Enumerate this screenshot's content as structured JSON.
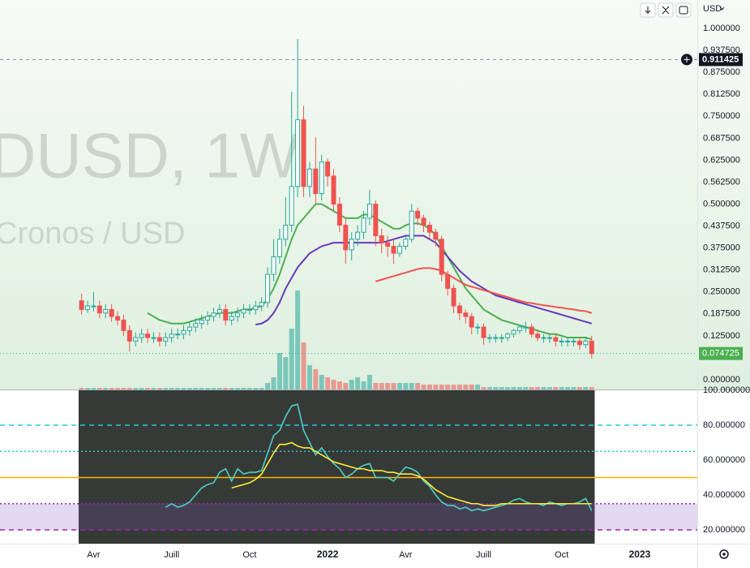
{
  "toolbar": {
    "currency": "USD"
  },
  "chart_data": [
    {
      "type": "candlestick",
      "title": "DUSD, 1W",
      "subtitle": "Cronos / USD",
      "xlim": [
        -13.6,
        102.6
      ],
      "xticks": [
        {
          "value": 2,
          "label": "Avr"
        },
        {
          "value": 15,
          "label": "Juill"
        },
        {
          "value": 28,
          "label": "Oct"
        },
        {
          "value": 41,
          "label": "2022"
        },
        {
          "value": 54,
          "label": "Avr"
        },
        {
          "value": 67,
          "label": "Juill"
        },
        {
          "value": 80,
          "label": "Oct"
        },
        {
          "value": 93,
          "label": "2023"
        }
      ],
      "ylim": [
        -0.0277,
        1.081
      ],
      "yticks": [
        {
          "value": 0,
          "label": "0.000000"
        },
        {
          "value": 0.125,
          "label": "0.125000"
        },
        {
          "value": 0.1875,
          "label": "0.187500"
        },
        {
          "value": 0.25,
          "label": "0.250000"
        },
        {
          "value": 0.3125,
          "label": "0.312500"
        },
        {
          "value": 0.375,
          "label": "0.375000"
        },
        {
          "value": 0.4375,
          "label": "0.437500"
        },
        {
          "value": 0.5,
          "label": "0.500000"
        },
        {
          "value": 0.5625,
          "label": "0.562500"
        },
        {
          "value": 0.625,
          "label": "0.625000"
        },
        {
          "value": 0.6875,
          "label": "0.687500"
        },
        {
          "value": 0.75,
          "label": "0.750000"
        },
        {
          "value": 0.8125,
          "label": "0.812500"
        },
        {
          "value": 0.875,
          "label": "0.875000"
        },
        {
          "value": 0.9375,
          "label": "0.937500"
        },
        {
          "value": 1,
          "label": "1.000000"
        }
      ],
      "up_color": "#26a69a",
      "down_color": "#ef5350",
      "up_fill": "#ffffff",
      "open": [
        0.225,
        0.2,
        0.21,
        0.21,
        0.19,
        0.2,
        0.18,
        0.17,
        0.14,
        0.11,
        0.12,
        0.13,
        0.12,
        0.12,
        0.11,
        0.12,
        0.13,
        0.13,
        0.14,
        0.15,
        0.16,
        0.17,
        0.18,
        0.19,
        0.2,
        0.17,
        0.18,
        0.19,
        0.2,
        0.2,
        0.21,
        0.22,
        0.3,
        0.35,
        0.4,
        0.44,
        0.55,
        0.74,
        0.55,
        0.6,
        0.53,
        0.62,
        0.58,
        0.5,
        0.44,
        0.37,
        0.4,
        0.42,
        0.46,
        0.5,
        0.41,
        0.39,
        0.38,
        0.36,
        0.38,
        0.4,
        0.48,
        0.46,
        0.44,
        0.42,
        0.4,
        0.3,
        0.26,
        0.21,
        0.19,
        0.18,
        0.15,
        0.15,
        0.12,
        0.12,
        0.12,
        0.12,
        0.13,
        0.14,
        0.15,
        0.15,
        0.13,
        0.12,
        0.12,
        0.12,
        0.11,
        0.11,
        0.11,
        0.11,
        0.1,
        0.11
      ],
      "high": [
        0.245,
        0.225,
        0.25,
        0.225,
        0.215,
        0.215,
        0.195,
        0.185,
        0.155,
        0.135,
        0.145,
        0.145,
        0.135,
        0.135,
        0.135,
        0.145,
        0.145,
        0.155,
        0.165,
        0.175,
        0.185,
        0.195,
        0.205,
        0.215,
        0.215,
        0.195,
        0.205,
        0.215,
        0.215,
        0.225,
        0.235,
        0.32,
        0.4,
        0.43,
        0.52,
        0.82,
        0.97,
        0.78,
        0.62,
        0.69,
        0.64,
        0.63,
        0.6,
        0.52,
        0.46,
        0.42,
        0.44,
        0.48,
        0.54,
        0.51,
        0.43,
        0.41,
        0.4,
        0.39,
        0.41,
        0.5,
        0.49,
        0.47,
        0.45,
        0.43,
        0.41,
        0.31,
        0.27,
        0.22,
        0.2,
        0.19,
        0.16,
        0.16,
        0.13,
        0.13,
        0.13,
        0.135,
        0.145,
        0.155,
        0.165,
        0.16,
        0.14,
        0.13,
        0.13,
        0.13,
        0.12,
        0.12,
        0.12,
        0.12,
        0.12,
        0.125
      ],
      "low": [
        0.185,
        0.19,
        0.195,
        0.175,
        0.175,
        0.165,
        0.155,
        0.125,
        0.08,
        0.095,
        0.105,
        0.105,
        0.105,
        0.095,
        0.095,
        0.105,
        0.115,
        0.115,
        0.125,
        0.135,
        0.145,
        0.155,
        0.165,
        0.175,
        0.155,
        0.155,
        0.165,
        0.175,
        0.185,
        0.185,
        0.195,
        0.205,
        0.28,
        0.33,
        0.38,
        0.42,
        0.52,
        0.52,
        0.52,
        0.5,
        0.51,
        0.55,
        0.48,
        0.42,
        0.33,
        0.34,
        0.38,
        0.4,
        0.44,
        0.38,
        0.36,
        0.35,
        0.33,
        0.35,
        0.37,
        0.39,
        0.44,
        0.42,
        0.4,
        0.38,
        0.28,
        0.24,
        0.19,
        0.17,
        0.16,
        0.13,
        0.13,
        0.1,
        0.105,
        0.105,
        0.105,
        0.11,
        0.12,
        0.13,
        0.135,
        0.12,
        0.11,
        0.105,
        0.105,
        0.095,
        0.095,
        0.095,
        0.095,
        0.085,
        0.09,
        0.06
      ],
      "close": [
        0.2,
        0.21,
        0.21,
        0.19,
        0.2,
        0.18,
        0.17,
        0.14,
        0.11,
        0.12,
        0.13,
        0.12,
        0.12,
        0.11,
        0.12,
        0.13,
        0.13,
        0.14,
        0.15,
        0.16,
        0.17,
        0.18,
        0.19,
        0.2,
        0.17,
        0.18,
        0.19,
        0.2,
        0.2,
        0.21,
        0.22,
        0.3,
        0.35,
        0.4,
        0.44,
        0.55,
        0.74,
        0.55,
        0.6,
        0.53,
        0.62,
        0.58,
        0.5,
        0.44,
        0.37,
        0.4,
        0.42,
        0.46,
        0.5,
        0.41,
        0.39,
        0.38,
        0.36,
        0.38,
        0.4,
        0.48,
        0.46,
        0.44,
        0.42,
        0.4,
        0.3,
        0.26,
        0.21,
        0.19,
        0.18,
        0.15,
        0.15,
        0.12,
        0.12,
        0.12,
        0.12,
        0.13,
        0.14,
        0.15,
        0.15,
        0.13,
        0.12,
        0.12,
        0.12,
        0.11,
        0.11,
        0.11,
        0.11,
        0.1,
        0.11,
        0.0747
      ],
      "volume": [
        2,
        2,
        2,
        2,
        2,
        2,
        2,
        2,
        2,
        2,
        2,
        2,
        2,
        2,
        2,
        2,
        2,
        2,
        2,
        2,
        2,
        2,
        2,
        2,
        2,
        2,
        2,
        2,
        2,
        2,
        2,
        8,
        15,
        45,
        40,
        75,
        122,
        58,
        30,
        25,
        18,
        15,
        12,
        10,
        8,
        12,
        15,
        10,
        18,
        8,
        8,
        8,
        8,
        8,
        8,
        8,
        8,
        6,
        6,
        6,
        6,
        6,
        6,
        6,
        6,
        6,
        6,
        3,
        3,
        3,
        3,
        3,
        3,
        3,
        3,
        3,
        3,
        3,
        3,
        3,
        3,
        3,
        3,
        3,
        3,
        3
      ],
      "volume_lim": [
        0,
        130
      ],
      "series": [
        {
          "color": "#4caf50",
          "values": [
            null,
            null,
            null,
            null,
            null,
            null,
            null,
            null,
            null,
            null,
            null,
            0.19,
            0.18,
            0.17,
            0.165,
            0.16,
            0.16,
            0.16,
            0.165,
            0.17,
            0.175,
            0.18,
            0.185,
            0.19,
            0.19,
            0.19,
            0.195,
            0.2,
            0.2,
            0.205,
            0.21,
            0.23,
            0.26,
            0.3,
            0.35,
            0.4,
            0.44,
            0.46,
            0.48,
            0.5,
            0.5,
            0.49,
            0.48,
            0.47,
            0.46,
            0.46,
            0.46,
            0.47,
            0.47,
            0.46,
            0.45,
            0.44,
            0.43,
            0.43,
            0.44,
            0.445,
            0.445,
            0.44,
            0.43,
            0.41,
            0.38,
            0.35,
            0.32,
            0.29,
            0.26,
            0.24,
            0.22,
            0.2,
            0.19,
            0.18,
            0.17,
            0.165,
            0.16,
            0.155,
            0.15,
            0.145,
            0.14,
            0.135,
            0.13,
            0.13,
            0.125,
            0.12,
            0.12,
            0.12,
            0.12,
            0.115
          ]
        },
        {
          "color": "#673ab7",
          "values": [
            null,
            null,
            null,
            null,
            null,
            null,
            null,
            null,
            null,
            null,
            null,
            null,
            null,
            null,
            null,
            null,
            null,
            null,
            null,
            null,
            null,
            null,
            null,
            null,
            null,
            null,
            null,
            null,
            null,
            0.157,
            0.16,
            0.17,
            0.19,
            0.22,
            0.26,
            0.29,
            0.32,
            0.34,
            0.36,
            0.37,
            0.38,
            0.385,
            0.39,
            0.39,
            0.39,
            0.39,
            0.39,
            0.39,
            0.39,
            0.39,
            0.39,
            0.395,
            0.4,
            0.405,
            0.41,
            0.41,
            0.41,
            0.41,
            0.4,
            0.39,
            0.37,
            0.35,
            0.33,
            0.31,
            0.295,
            0.28,
            0.27,
            0.26,
            0.25,
            0.24,
            0.235,
            0.23,
            0.225,
            0.22,
            0.215,
            0.21,
            0.205,
            0.2,
            0.195,
            0.19,
            0.185,
            0.18,
            0.175,
            0.17,
            0.165,
            0.16
          ]
        },
        {
          "color": "#ef5350",
          "values": [
            null,
            null,
            null,
            null,
            null,
            null,
            null,
            null,
            null,
            null,
            null,
            null,
            null,
            null,
            null,
            null,
            null,
            null,
            null,
            null,
            null,
            null,
            null,
            null,
            null,
            null,
            null,
            null,
            null,
            null,
            null,
            null,
            null,
            null,
            null,
            null,
            null,
            null,
            null,
            null,
            null,
            null,
            null,
            null,
            null,
            null,
            null,
            null,
            null,
            0.28,
            0.285,
            0.29,
            0.295,
            0.3,
            0.305,
            0.31,
            0.315,
            0.318,
            0.318,
            0.315,
            0.31,
            0.3,
            0.29,
            0.28,
            0.27,
            0.265,
            0.26,
            0.255,
            0.25,
            0.245,
            0.24,
            0.235,
            0.23,
            0.225,
            0.22,
            0.218,
            0.215,
            0.212,
            0.21,
            0.207,
            0.205,
            0.202,
            0.2,
            0.197,
            0.195,
            0.19
          ]
        }
      ],
      "crosshair": 0.911425,
      "last_price": 0.074725
    },
    {
      "type": "line",
      "ylim": [
        12.1,
        100
      ],
      "yticks": [
        {
          "value": 20,
          "label": "20.000000"
        },
        {
          "value": 40,
          "label": "40.000000"
        },
        {
          "value": 60,
          "label": "60.000000"
        },
        {
          "value": 80,
          "label": "80.000000"
        },
        {
          "value": 100,
          "label": "100.000000"
        }
      ],
      "levels": [
        {
          "value": 80,
          "color": "#26c6da",
          "style": "dashed"
        },
        {
          "value": 65,
          "color": "#26c6da",
          "style": "dotted"
        },
        {
          "value": 50,
          "color": "#ffb300",
          "style": "solid"
        },
        {
          "value": 35,
          "color": "#9c27b0",
          "style": "dotted"
        },
        {
          "value": 20,
          "color": "#9c27b0",
          "style": "dashed"
        }
      ],
      "series": [
        {
          "color": "#4dd0c8",
          "values": [
            null,
            null,
            null,
            null,
            null,
            null,
            null,
            null,
            null,
            null,
            null,
            null,
            null,
            null,
            33,
            35,
            33,
            34,
            36,
            40,
            44,
            46,
            47,
            53,
            55,
            48,
            55,
            52,
            53,
            53,
            54,
            64,
            74,
            77,
            85,
            91,
            92,
            77,
            70,
            63,
            67,
            62,
            58,
            55,
            50,
            52,
            55,
            57,
            58,
            50,
            50,
            50,
            48,
            52,
            56,
            55,
            53,
            48,
            45,
            40,
            36,
            34,
            34,
            32,
            33,
            31,
            32,
            31,
            32,
            33,
            34,
            35,
            37,
            38,
            36,
            35,
            35,
            34,
            36,
            35,
            34,
            35,
            35,
            36,
            38,
            31
          ]
        },
        {
          "color": "#ffeb3b",
          "values": [
            null,
            null,
            null,
            null,
            null,
            null,
            null,
            null,
            null,
            null,
            null,
            null,
            null,
            null,
            null,
            null,
            null,
            null,
            null,
            null,
            null,
            null,
            null,
            null,
            null,
            44,
            45,
            46,
            47,
            49,
            52,
            58,
            64,
            69,
            69,
            70,
            68,
            67,
            67,
            65,
            63,
            61,
            59,
            58,
            57,
            56,
            55,
            55,
            54,
            54,
            54,
            53,
            53,
            52,
            52,
            52,
            51,
            49,
            46,
            43,
            41,
            39,
            38,
            37,
            36,
            35,
            35,
            34,
            34,
            34,
            35,
            35,
            35,
            35,
            35,
            35,
            35,
            35,
            35,
            35,
            35,
            35,
            35,
            35,
            35,
            35
          ]
        }
      ]
    }
  ]
}
